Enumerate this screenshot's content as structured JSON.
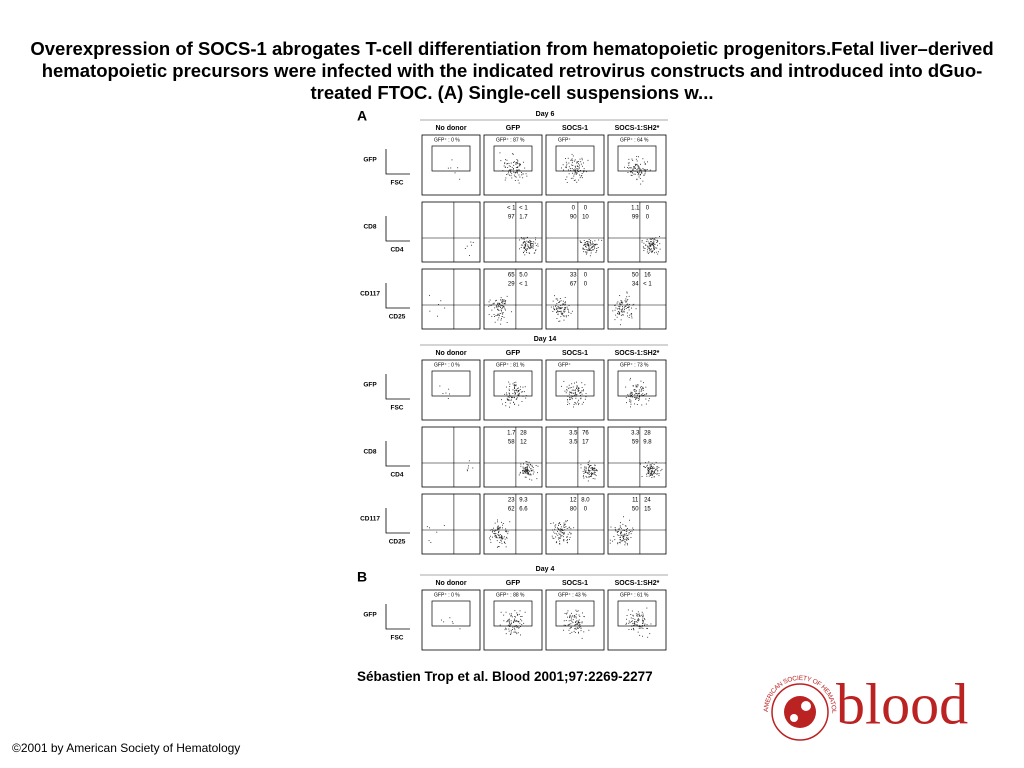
{
  "title": "Overexpression of SOCS-1 abrogates T-cell differentiation from hematopoietic progenitors.Fetal liver–derived hematopoietic precursors were infected with the indicated retrovirus constructs and introduced into dGuo-treated FTOC. (A) Single-cell suspensions w...",
  "figure": {
    "sections": [
      {
        "panel": "A",
        "day": "Day 6",
        "columns": [
          "No donor",
          "GFP",
          "SOCS-1",
          "SOCS-1:SH2*"
        ],
        "rows": [
          {
            "y_axis": "GFP",
            "x_axis": "FSC",
            "cells": [
              "GFP⁺ : 0 %",
              "GFP⁺ : 87 %",
              "GFP⁺",
              "GFP⁺ : 64 %"
            ]
          },
          {
            "y_axis": "CD8",
            "x_axis": "CD4",
            "cells": [
              [],
              [
                "< 1",
                "< 1",
                "97",
                "1.7"
              ],
              [
                "0",
                "0",
                "90",
                "10"
              ],
              [
                "1.1",
                "0",
                "99",
                "0"
              ]
            ]
          },
          {
            "y_axis": "CD117",
            "x_axis": "CD25",
            "cells": [
              [],
              [
                "65",
                "5.0",
                "29",
                "< 1"
              ],
              [
                "33",
                "0",
                "67",
                "0"
              ],
              [
                "50",
                "16",
                "34",
                "< 1"
              ]
            ]
          }
        ]
      },
      {
        "day": "Day 14",
        "columns": [
          "No donor",
          "GFP",
          "SOCS-1",
          "SOCS-1:SH2*"
        ],
        "rows": [
          {
            "y_axis": "GFP",
            "x_axis": "FSC",
            "cells": [
              "GFP⁺ : 0 %",
              "GFP⁺ : 81 %",
              "GFP⁺",
              "GFP⁺ : 73 %"
            ]
          },
          {
            "y_axis": "CD8",
            "x_axis": "CD4",
            "cells": [
              [],
              [
                "1.7",
                "28",
                "58",
                "12"
              ],
              [
                "3.5",
                "76",
                "3.5",
                "17"
              ],
              [
                "3.3",
                "28",
                "59",
                "9.8"
              ]
            ]
          },
          {
            "y_axis": "CD117",
            "x_axis": "CD25",
            "cells": [
              [],
              [
                "23",
                "9.3",
                "62",
                "6.6"
              ],
              [
                "12",
                "8.0",
                "80",
                "0"
              ],
              [
                "11",
                "24",
                "50",
                "15"
              ]
            ]
          }
        ]
      },
      {
        "panel": "B",
        "day": "Day 4",
        "columns": [
          "No donor",
          "GFP",
          "SOCS-1",
          "SOCS-1:SH2*"
        ],
        "rows": [
          {
            "y_axis": "GFP",
            "x_axis": "FSC",
            "cells": [
              "GFP⁺ : 0 %",
              "GFP⁺ : 88 %",
              "GFP⁺ : 43 %",
              "GFP⁺ : 61 %"
            ]
          }
        ]
      }
    ]
  },
  "citation": "Sébastien Trop et al. Blood 2001;97:2269-2277",
  "copyright": "©2001 by American Society of Hematology",
  "logo": {
    "text": "blood",
    "ring": "AMERICAN SOCIETY OF HEMATOLOGY"
  }
}
